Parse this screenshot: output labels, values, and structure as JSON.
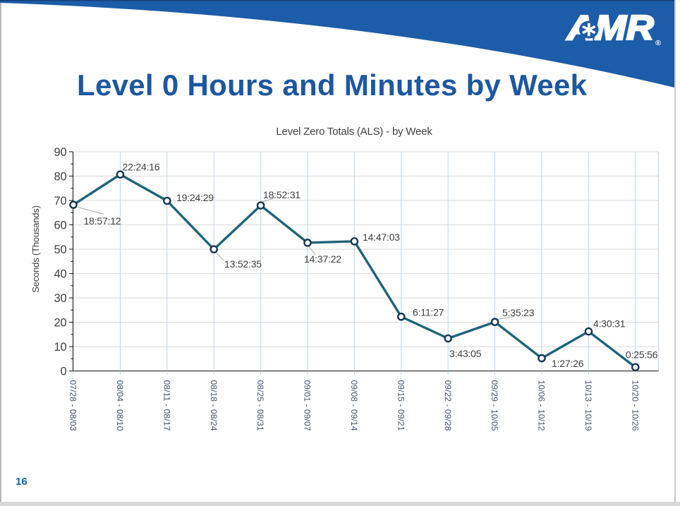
{
  "slide": {
    "title": "Level 0 Hours and Minutes by Week",
    "page_number": "16",
    "logo": {
      "text": "AMR",
      "registered": "®"
    },
    "colors": {
      "brand_blue": "#1d5ca8",
      "title_blue": "#1d57a0",
      "series_line": "#1f6379",
      "marker_ring": "#173854",
      "grid_h": "#d9d9d9",
      "grid_v": "#bdd7ee",
      "axis": "#262626",
      "tick_text": "#404040",
      "x_label_text": "#44546a",
      "leader": "#a6a6a6"
    }
  },
  "chart_data": {
    "type": "line",
    "title": "Level Zero Totals (ALS) - by Week",
    "xlabel": "",
    "ylabel": "Seconds (Thousands)",
    "ylim": [
      0,
      90
    ],
    "ytick_step": 10,
    "grid": true,
    "legend": false,
    "categories": [
      "07/28 - 08/03",
      "08/04 - 08/10",
      "08/11 - 08/17",
      "08/18 - 08/24",
      "08/25 - 08/31",
      "09/01 - 09/07",
      "09/08 - 09/14",
      "09/15 - 09/21",
      "09/22 - 09/28",
      "09/29 - 10/05",
      "10/06 - 10/12",
      "10/13 - 10/19",
      "10/20 - 10/26"
    ],
    "series": [
      {
        "name": "Level Zero Totals (ALS)",
        "values": [
          68.232,
          80.656,
          69.869,
          49.955,
          67.951,
          52.642,
          53.223,
          22.287,
          13.385,
          20.123,
          5.246,
          16.231,
          1.556
        ],
        "point_labels": [
          "18:57:12",
          "22:24:16",
          "19:24:29",
          "13:52:35",
          "18:52:31",
          "14:37:22",
          "14:47:03",
          "6:11:27",
          "3:43:05",
          "5:35:23",
          "1:27:26",
          "4:30:31",
          "0:25:56"
        ]
      }
    ]
  }
}
